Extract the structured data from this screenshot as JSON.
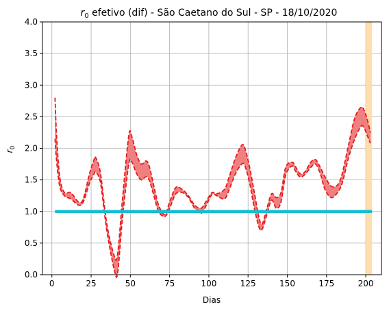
{
  "chart_data": {
    "type": "line",
    "title_prefix": "r",
    "title_subscript": "0",
    "title_suffix": " efetivo (dif) - São Caetano do Sul - SP - 18/10/2020",
    "xlabel": "Dias",
    "ylabel_main": "r",
    "ylabel_sub": "0",
    "xlim": [
      -6,
      210
    ],
    "ylim": [
      0,
      4
    ],
    "xticks": [
      0,
      25,
      50,
      75,
      100,
      125,
      150,
      175,
      200
    ],
    "yticks": [
      0.0,
      0.5,
      1.0,
      1.5,
      2.0,
      2.5,
      3.0,
      3.5,
      4.0
    ],
    "ytick_labels": [
      "0.0",
      "0.5",
      "1.0",
      "1.5",
      "2.0",
      "2.5",
      "3.0",
      "3.5",
      "4.0"
    ],
    "grid": true,
    "colors": {
      "band_fill": "#f08080",
      "band_line": "#e8191c",
      "reference_line": "#17becf",
      "highlight_span": "#ffdead",
      "grid": "#b0b0b0"
    },
    "highlight_span": [
      200,
      204
    ],
    "reference": {
      "x": [
        2,
        204
      ],
      "y": 1.0
    },
    "x": [
      2,
      3,
      5,
      8,
      12,
      17,
      20,
      24,
      27,
      28,
      31,
      35,
      40,
      42,
      45,
      49,
      51,
      54,
      57,
      60,
      62,
      65,
      68,
      72,
      75,
      79,
      83,
      87,
      91,
      95,
      98,
      102,
      105,
      110,
      113,
      117,
      121,
      123,
      126,
      129,
      132,
      134,
      137,
      140,
      143,
      146,
      149,
      153,
      155,
      158,
      161,
      165,
      168,
      171,
      174,
      178,
      182,
      185,
      189,
      193,
      197,
      199,
      201,
      203
    ],
    "upper": [
      2.8,
      2.2,
      1.55,
      1.3,
      1.3,
      1.15,
      1.2,
      1.6,
      1.83,
      1.85,
      1.6,
      0.8,
      0.28,
      0.35,
      1.2,
      2.2,
      2.18,
      1.9,
      1.75,
      1.8,
      1.72,
      1.4,
      1.1,
      0.95,
      1.15,
      1.38,
      1.35,
      1.25,
      1.1,
      1.05,
      1.15,
      1.3,
      1.28,
      1.35,
      1.55,
      1.85,
      2.05,
      2.0,
      1.7,
      1.3,
      0.9,
      0.8,
      1.05,
      1.28,
      1.22,
      1.3,
      1.7,
      1.78,
      1.72,
      1.6,
      1.62,
      1.78,
      1.82,
      1.7,
      1.55,
      1.4,
      1.42,
      1.6,
      2.05,
      2.48,
      2.65,
      2.6,
      2.45,
      2.25
    ],
    "lower": [
      2.15,
      1.8,
      1.4,
      1.25,
      1.2,
      1.1,
      1.15,
      1.45,
      1.6,
      1.62,
      1.45,
      0.7,
      0.05,
      0.05,
      0.9,
      1.75,
      1.78,
      1.6,
      1.5,
      1.55,
      1.5,
      1.25,
      1.0,
      0.92,
      1.05,
      1.28,
      1.3,
      1.22,
      1.05,
      0.97,
      1.08,
      1.27,
      1.25,
      1.2,
      1.35,
      1.6,
      1.75,
      1.72,
      1.45,
      1.05,
      0.75,
      0.72,
      0.95,
      1.18,
      1.05,
      1.15,
      1.58,
      1.72,
      1.65,
      1.55,
      1.58,
      1.7,
      1.75,
      1.6,
      1.35,
      1.22,
      1.3,
      1.45,
      1.85,
      2.15,
      2.35,
      2.32,
      2.2,
      2.08
    ]
  }
}
